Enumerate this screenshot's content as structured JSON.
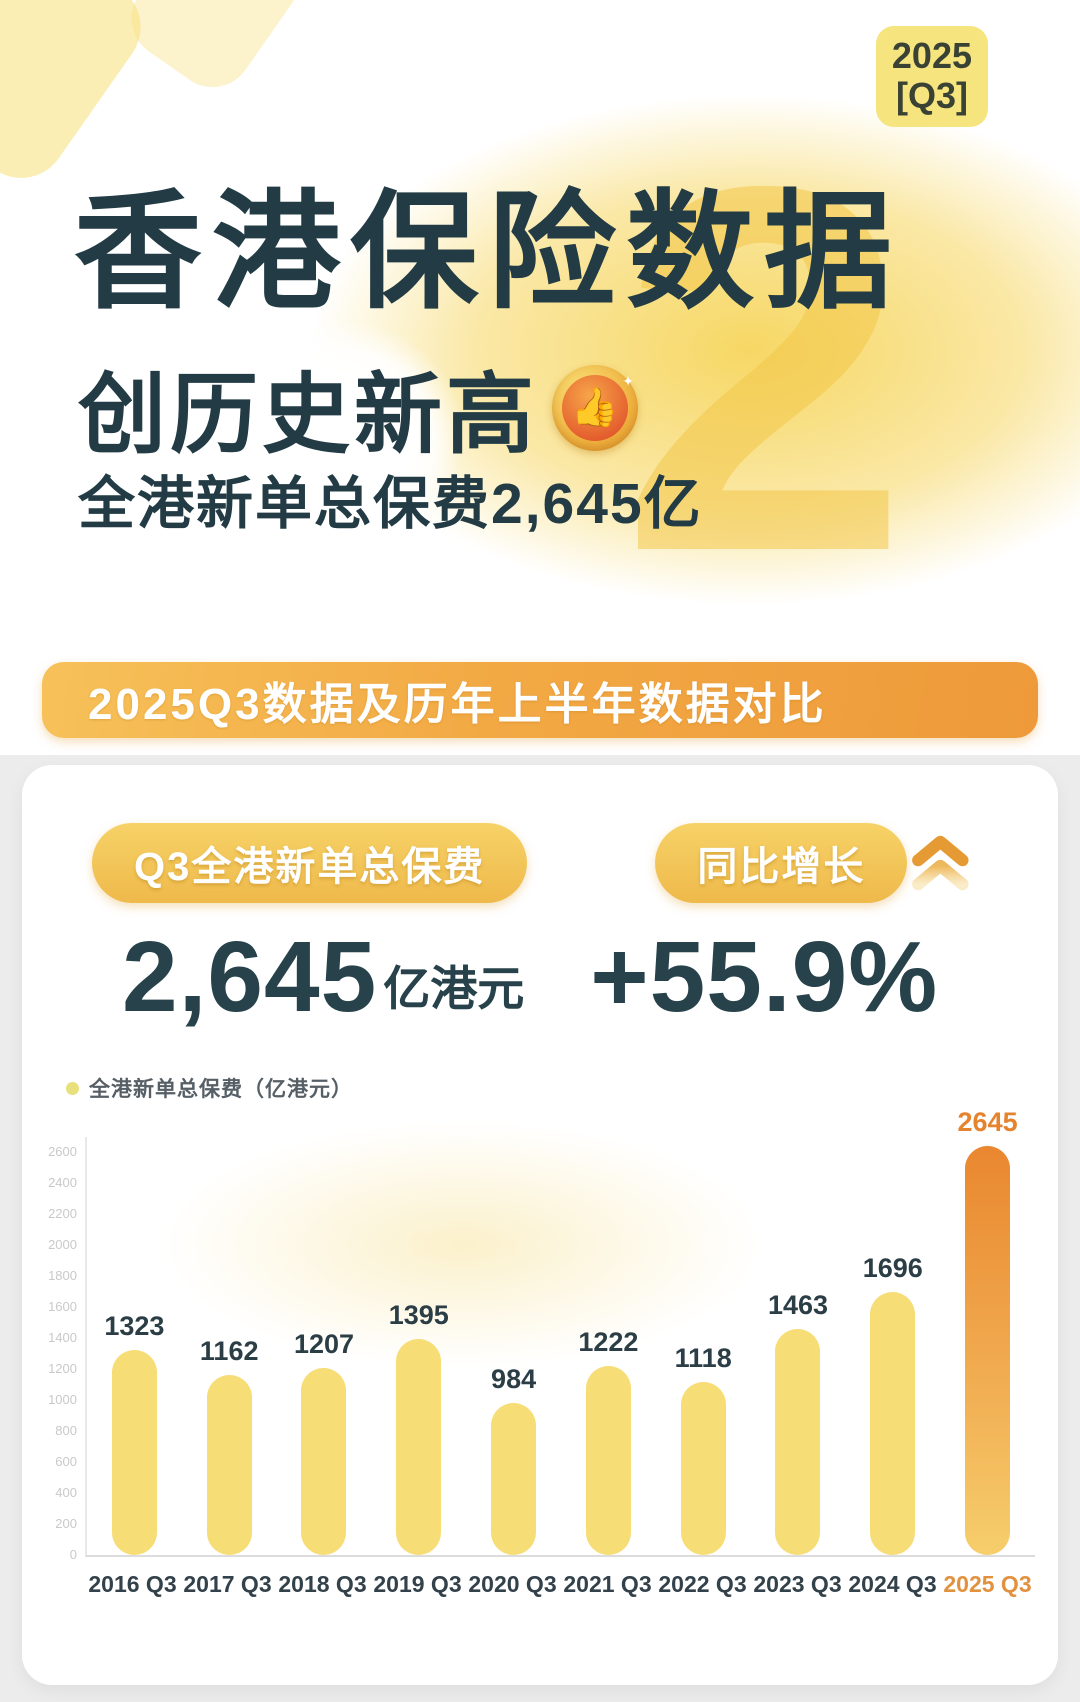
{
  "year_badge": {
    "line1": "2025",
    "line2": "[Q3]"
  },
  "hero": {
    "title": "香港保险数据",
    "subtitle": "创历史新高",
    "medal_icon": "thumbs-up-medal",
    "medal_glyph": "👍",
    "tagline": "全港新单总保费2,645亿",
    "ghost_numeral": "2"
  },
  "banner": {
    "text": "2025Q3数据及历年上半年数据对比"
  },
  "stats": {
    "premium": {
      "label": "Q3全港新单总保费",
      "value": "2,645",
      "unit": "亿港元"
    },
    "growth": {
      "label": "同比增长",
      "value": "+55.9%"
    },
    "trend_icon": "double-chevron-up"
  },
  "chart_data": {
    "type": "bar",
    "legend": "全港新单总保费（亿港元）",
    "legend_position": "top-left",
    "categories": [
      "2016 Q3",
      "2017 Q3",
      "2018 Q3",
      "2019 Q3",
      "2020 Q3",
      "2021 Q3",
      "2022 Q3",
      "2023 Q3",
      "2024 Q3",
      "2025 Q3"
    ],
    "values": [
      1323,
      1162,
      1207,
      1395,
      984,
      1222,
      1118,
      1463,
      1696,
      2645
    ],
    "highlight_index": 9,
    "xlabel": "",
    "ylabel": "",
    "ylim": [
      0,
      2700
    ],
    "yticks": [
      0,
      200,
      400,
      600,
      800,
      1000,
      1200,
      1400,
      1600,
      1800,
      2000,
      2200,
      2400,
      2600
    ],
    "grid": false,
    "colors": {
      "bar": "#F7DD76",
      "highlight_top": "#E9872F",
      "highlight_bottom": "#F6CE6B",
      "value_label": "#2B3E46",
      "highlight_value_label": "#E5832F",
      "tick_label": "#C9C9C9",
      "x_label": "#33414B",
      "highlight_x_label": "#E2913F"
    }
  },
  "colors": {
    "title_text": "#223B44",
    "year_badge_bg": "#F6E47F",
    "year_badge_text": "#3A4234",
    "banner_orange": "#EE9A3A",
    "pill_gold": "#EFB94B",
    "card_bg": "#FFFFFF",
    "section_bg": "#ECECEC"
  }
}
